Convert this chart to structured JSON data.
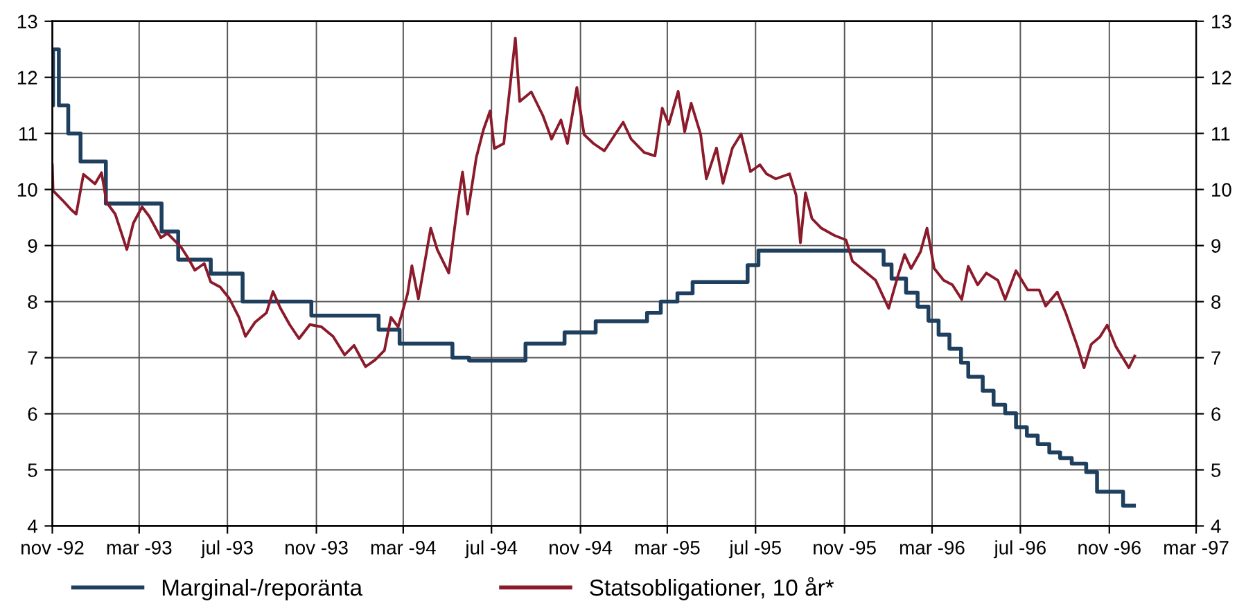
{
  "chart_data": {
    "type": "line",
    "xlim": [
      "1992-11-01",
      "1997-03-01"
    ],
    "xticks": [
      {
        "value": "1992-11-01",
        "label": "nov -92"
      },
      {
        "value": "1993-03-01",
        "label": "mar -93"
      },
      {
        "value": "1993-07-01",
        "label": "jul -93"
      },
      {
        "value": "1993-11-01",
        "label": "nov -93"
      },
      {
        "value": "1994-03-01",
        "label": "mar -94"
      },
      {
        "value": "1994-07-01",
        "label": "jul -94"
      },
      {
        "value": "1994-11-01",
        "label": "nov -94"
      },
      {
        "value": "1995-03-01",
        "label": "mar -95"
      },
      {
        "value": "1995-07-01",
        "label": "jul -95"
      },
      {
        "value": "1995-11-01",
        "label": "nov -95"
      },
      {
        "value": "1996-03-01",
        "label": "mar -96"
      },
      {
        "value": "1996-07-01",
        "label": "jul -96"
      },
      {
        "value": "1996-11-01",
        "label": "nov -96"
      },
      {
        "value": "1997-03-01",
        "label": "mar -97"
      }
    ],
    "ylim": [
      4,
      13
    ],
    "yticks": [
      4,
      5,
      6,
      7,
      8,
      9,
      10,
      11,
      12,
      13
    ],
    "y2lim": [
      4,
      13
    ],
    "y2ticks": [
      4,
      5,
      6,
      7,
      8,
      9,
      10,
      11,
      12,
      13
    ],
    "grid": true,
    "legend": "bottom",
    "line_style": "solid",
    "marker": "none",
    "series": [
      {
        "name": "Marginal-/reporänta",
        "type": "step",
        "color": "#1f3f5f",
        "x": [
          "1992-11-01",
          "1992-11-02",
          "1992-11-10",
          "1992-11-23",
          "1992-12-10",
          "1993-01-14",
          "1993-04-01",
          "1993-04-24",
          "1993-06-08",
          "1993-07-22",
          "1993-10-25",
          "1994-01-26",
          "1994-02-24",
          "1994-05-08",
          "1994-05-31",
          "1994-08-17",
          "1994-10-10",
          "1994-11-22",
          "1995-02-01",
          "1995-02-20",
          "1995-03-15",
          "1995-04-05",
          "1995-04-20",
          "1995-06-20",
          "1995-07-05",
          "1995-12-25",
          "1996-01-05",
          "1996-01-25",
          "1996-02-10",
          "1996-02-25",
          "1996-03-10",
          "1996-03-25",
          "1996-04-10",
          "1996-04-20",
          "1996-05-10",
          "1996-05-25",
          "1996-06-10",
          "1996-06-25",
          "1996-07-10",
          "1996-07-25",
          "1996-08-10",
          "1996-08-25",
          "1996-09-10",
          "1996-09-30",
          "1996-10-15",
          "1996-10-25",
          "1996-11-20",
          "1996-12-05"
        ],
        "values": [
          11.5,
          12.5,
          11.5,
          11.0,
          10.5,
          9.75,
          9.25,
          8.75,
          8.5,
          8.0,
          7.75,
          7.5,
          7.25,
          7.0,
          6.95,
          7.25,
          7.45,
          7.65,
          7.8,
          8.0,
          8.15,
          8.35,
          8.35,
          8.65,
          8.91,
          8.66,
          8.41,
          8.16,
          7.91,
          7.66,
          7.41,
          7.16,
          6.91,
          6.66,
          6.41,
          6.16,
          6.01,
          5.76,
          5.61,
          5.46,
          5.31,
          5.21,
          5.11,
          4.96,
          4.61,
          4.61,
          4.36,
          4.36
        ]
      },
      {
        "name": "Statsobligationer, 10 år*",
        "color": "#8b1a2b",
        "x": [
          "1992-11-01",
          "1992-11-02",
          "1992-11-15",
          "1992-11-27",
          "1992-12-04",
          "1992-12-14",
          "1992-12-30",
          "1993-01-08",
          "1993-01-15",
          "1993-01-27",
          "1993-02-12",
          "1993-02-21",
          "1993-03-05",
          "1993-03-15",
          "1993-03-31",
          "1993-04-09",
          "1993-04-28",
          "1993-05-08",
          "1993-05-17",
          "1993-05-30",
          "1993-06-08",
          "1993-06-21",
          "1993-07-04",
          "1993-07-17",
          "1993-07-26",
          "1993-08-08",
          "1993-08-24",
          "1993-09-02",
          "1993-09-12",
          "1993-09-25",
          "1993-10-08",
          "1993-10-23",
          "1993-11-08",
          "1993-11-24",
          "1993-12-10",
          "1993-12-23",
          "1994-01-08",
          "1994-01-21",
          "1994-02-03",
          "1994-02-12",
          "1994-02-22",
          "1994-03-07",
          "1994-03-13",
          "1994-03-22",
          "1994-04-08",
          "1994-04-17",
          "1994-05-03",
          "1994-05-16",
          "1994-05-22",
          "1994-05-29",
          "1994-06-10",
          "1994-06-20",
          "1994-06-29",
          "1994-07-05",
          "1994-07-18",
          "1994-08-03",
          "1994-08-09",
          "1994-08-25",
          "1994-09-10",
          "1994-09-22",
          "1994-10-05",
          "1994-10-14",
          "1994-10-27",
          "1994-11-06",
          "1994-11-19",
          "1994-12-04",
          "1994-12-30",
          "1995-01-10",
          "1995-01-28",
          "1995-02-12",
          "1995-02-22",
          "1995-03-03",
          "1995-03-16",
          "1995-03-25",
          "1995-04-03",
          "1995-04-16",
          "1995-04-24",
          "1995-05-08",
          "1995-05-17",
          "1995-05-30",
          "1995-06-11",
          "1995-06-24",
          "1995-07-07",
          "1995-07-16",
          "1995-07-29",
          "1995-08-17",
          "1995-08-26",
          "1995-09-01",
          "1995-09-08",
          "1995-09-17",
          "1995-09-30",
          "1995-10-18",
          "1995-11-03",
          "1995-11-12",
          "1995-11-28",
          "1995-12-14",
          "1996-01-01",
          "1996-01-14",
          "1996-01-23",
          "1996-02-01",
          "1996-02-14",
          "1996-02-23",
          "1996-03-04",
          "1996-03-17",
          "1996-03-29",
          "1996-04-11",
          "1996-04-20",
          "1996-05-03",
          "1996-05-15",
          "1996-05-31",
          "1996-06-10",
          "1996-06-25",
          "1996-07-11",
          "1996-07-27",
          "1996-08-05",
          "1996-08-21",
          "1996-09-02",
          "1996-09-18",
          "1996-09-27",
          "1996-10-07",
          "1996-10-19",
          "1996-10-29",
          "1996-11-10",
          "1996-11-28",
          "1996-12-06"
        ],
        "values": [
          10.44,
          9.98,
          9.81,
          9.64,
          9.56,
          10.27,
          10.1,
          10.3,
          9.77,
          9.56,
          8.93,
          9.4,
          9.69,
          9.52,
          9.14,
          9.22,
          8.97,
          8.77,
          8.56,
          8.68,
          8.35,
          8.26,
          8.05,
          7.72,
          7.38,
          7.63,
          7.8,
          8.18,
          7.89,
          7.59,
          7.34,
          7.59,
          7.55,
          7.38,
          7.05,
          7.22,
          6.84,
          6.96,
          7.13,
          7.72,
          7.55,
          8.14,
          8.64,
          8.05,
          9.31,
          8.93,
          8.51,
          9.81,
          10.31,
          9.56,
          10.57,
          11.07,
          11.4,
          10.73,
          10.82,
          12.7,
          11.57,
          11.74,
          11.32,
          10.9,
          11.24,
          10.82,
          11.82,
          10.98,
          10.82,
          10.69,
          11.2,
          10.9,
          10.66,
          10.6,
          11.45,
          11.16,
          11.75,
          11.03,
          11.54,
          10.99,
          10.19,
          10.74,
          10.11,
          10.74,
          10.99,
          10.32,
          10.44,
          10.28,
          10.19,
          10.28,
          9.9,
          9.05,
          9.94,
          9.48,
          9.31,
          9.18,
          9.1,
          8.72,
          8.55,
          8.38,
          7.88,
          8.47,
          8.84,
          8.59,
          8.89,
          9.31,
          8.59,
          8.38,
          8.3,
          8.04,
          8.63,
          8.3,
          8.51,
          8.38,
          8.04,
          8.55,
          8.21,
          8.21,
          7.92,
          8.17,
          7.79,
          7.2,
          6.82,
          7.24,
          7.37,
          7.58,
          7.2,
          6.82,
          7.03
        ]
      }
    ]
  }
}
